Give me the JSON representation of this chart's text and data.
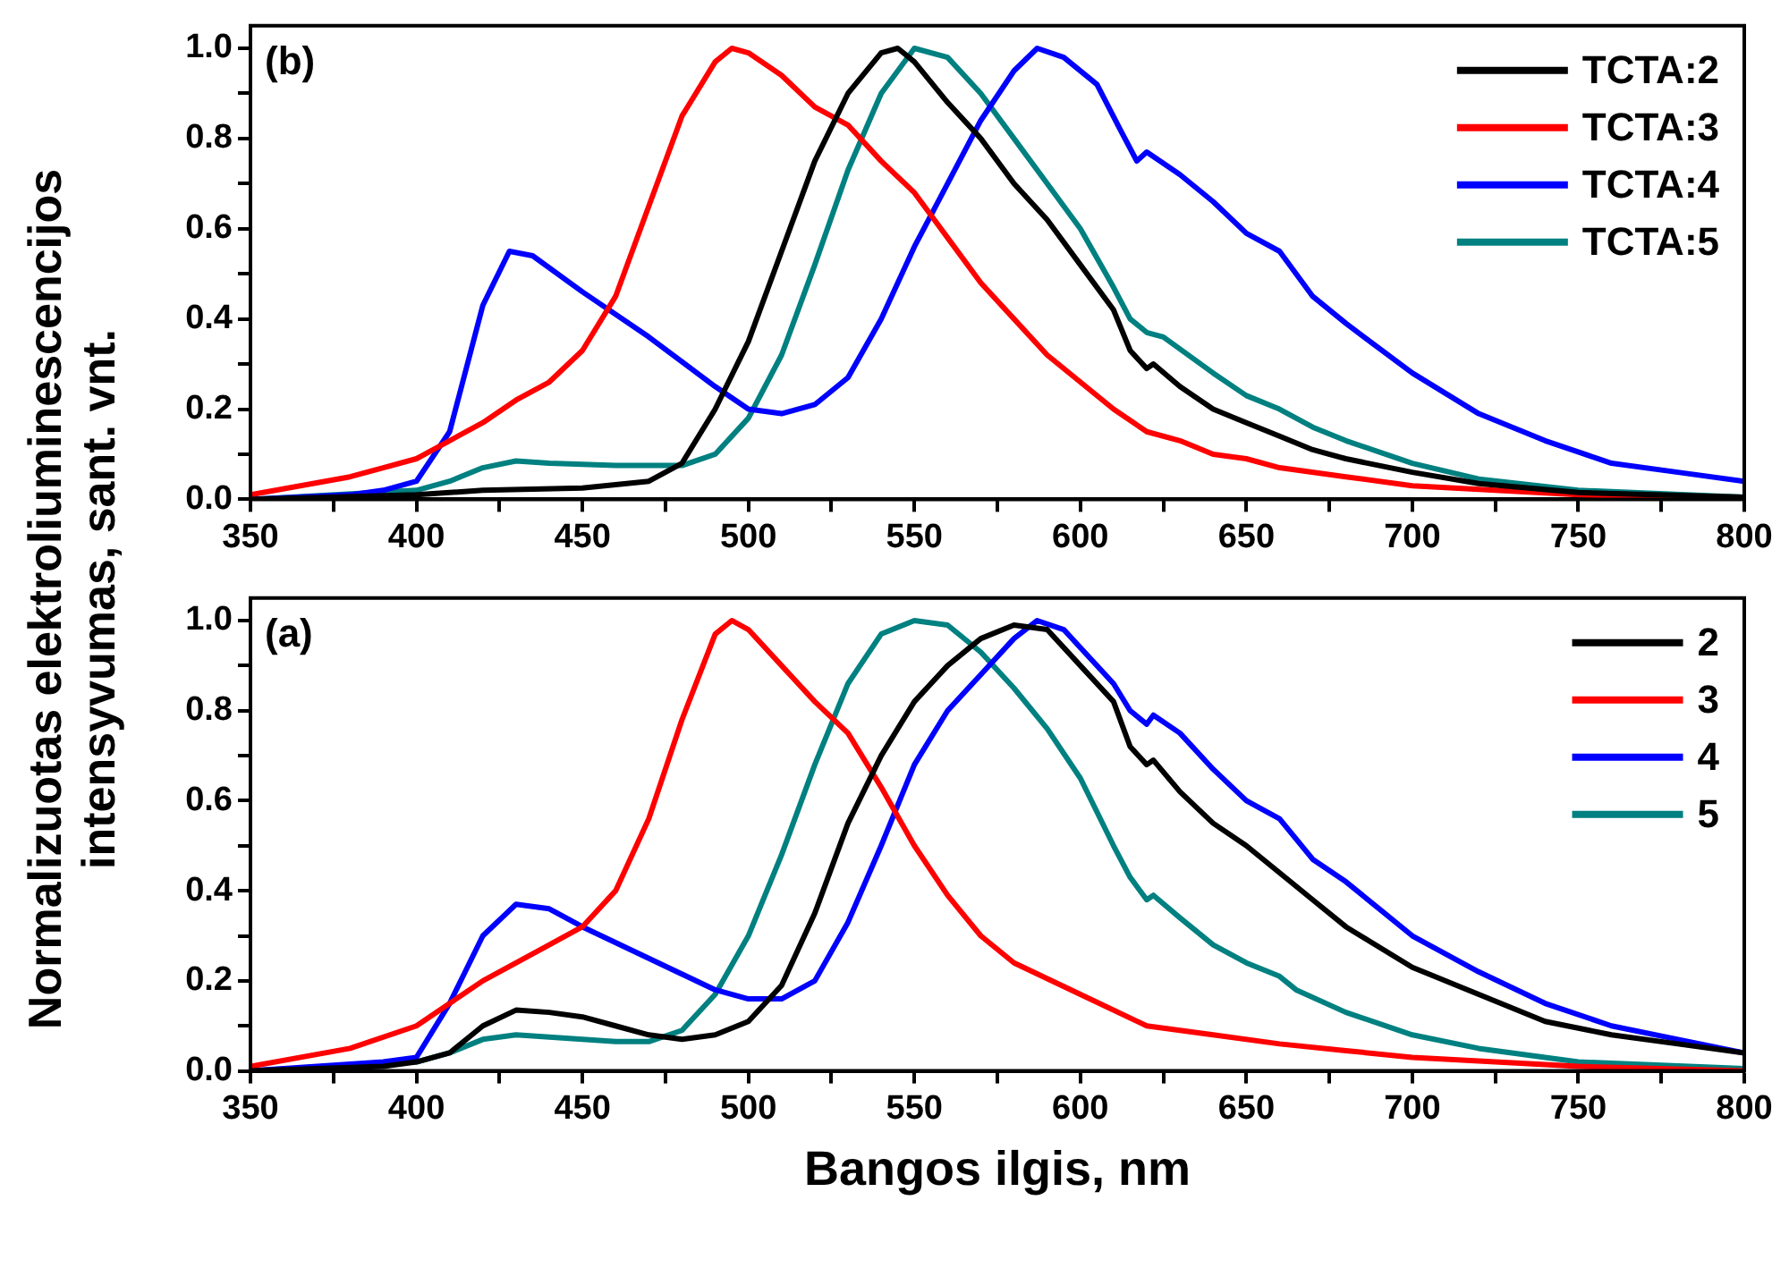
{
  "chart_data": [
    {
      "type": "line",
      "ylabel": "Normalizuotas elektroliuminescencijos intensyvumas, sant. vnt.",
      "annotations": [
        "(b)"
      ],
      "legend": "top right",
      "grid": false,
      "line_style": "solid",
      "marker": "none",
      "xlim": [
        350,
        800
      ],
      "ylim": [
        0,
        1.05
      ],
      "xticks": [
        350,
        {
          "value": 375,
          "label": null
        },
        400,
        {
          "value": 425,
          "label": null
        },
        450,
        {
          "value": 475,
          "label": null
        },
        500,
        {
          "value": 525,
          "label": null
        },
        550,
        {
          "value": 575,
          "label": null
        },
        600,
        {
          "value": 625,
          "label": null
        },
        650,
        {
          "value": 675,
          "label": null
        },
        700,
        {
          "value": 725,
          "label": null
        },
        750,
        {
          "value": 775,
          "label": null
        },
        800
      ],
      "yticks": [
        {
          "value": 0,
          "label": "0.0"
        },
        {
          "value": 0.1,
          "label": null
        },
        {
          "value": 0.2,
          "label": "0.2"
        },
        {
          "value": 0.3,
          "label": null
        },
        {
          "value": 0.4,
          "label": "0.4"
        },
        {
          "value": 0.5,
          "label": null
        },
        {
          "value": 0.6,
          "label": "0.6"
        },
        {
          "value": 0.7,
          "label": null
        },
        {
          "value": 0.8,
          "label": "0.8"
        },
        {
          "value": 0.9,
          "label": null
        },
        {
          "value": 1,
          "label": "1.0"
        }
      ],
      "series": [
        {
          "name": "TCTA:2",
          "color": "#000000",
          "x": [
            350,
            400,
            420,
            450,
            470,
            480,
            490,
            500,
            510,
            520,
            530,
            540,
            545,
            550,
            560,
            570,
            580,
            590,
            600,
            610,
            615,
            620,
            622,
            630,
            640,
            650,
            660,
            670,
            680,
            700,
            720,
            750,
            800
          ],
          "values": [
            0,
            0.01,
            0.02,
            0.025,
            0.04,
            0.08,
            0.2,
            0.35,
            0.55,
            0.75,
            0.9,
            0.99,
            1.0,
            0.97,
            0.88,
            0.8,
            0.7,
            0.62,
            0.52,
            0.42,
            0.33,
            0.29,
            0.3,
            0.25,
            0.2,
            0.17,
            0.14,
            0.11,
            0.09,
            0.06,
            0.035,
            0.015,
            0.005
          ]
        },
        {
          "name": "TCTA:3",
          "color": "#ff0000",
          "x": [
            350,
            380,
            390,
            400,
            420,
            430,
            440,
            450,
            460,
            470,
            480,
            490,
            495,
            500,
            510,
            520,
            530,
            540,
            550,
            560,
            570,
            580,
            590,
            600,
            610,
            620,
            630,
            640,
            650,
            660,
            680,
            700,
            750,
            800
          ],
          "values": [
            0.01,
            0.05,
            0.07,
            0.09,
            0.17,
            0.22,
            0.26,
            0.33,
            0.45,
            0.65,
            0.85,
            0.97,
            1.0,
            0.99,
            0.94,
            0.87,
            0.83,
            0.75,
            0.68,
            0.58,
            0.48,
            0.4,
            0.32,
            0.26,
            0.2,
            0.15,
            0.13,
            0.1,
            0.09,
            0.07,
            0.05,
            0.03,
            0.01,
            0
          ]
        },
        {
          "name": "TCTA:4",
          "color": "#0000ff",
          "x": [
            350,
            380,
            390,
            400,
            410,
            420,
            428,
            435,
            450,
            470,
            490,
            500,
            510,
            520,
            530,
            540,
            550,
            560,
            570,
            580,
            587,
            595,
            605,
            612,
            617,
            620,
            630,
            640,
            650,
            660,
            670,
            680,
            700,
            720,
            740,
            760,
            780,
            800
          ],
          "values": [
            0,
            0.01,
            0.02,
            0.04,
            0.15,
            0.43,
            0.55,
            0.54,
            0.46,
            0.36,
            0.25,
            0.2,
            0.19,
            0.21,
            0.27,
            0.4,
            0.56,
            0.7,
            0.84,
            0.95,
            1.0,
            0.98,
            0.92,
            0.82,
            0.75,
            0.77,
            0.72,
            0.66,
            0.59,
            0.55,
            0.45,
            0.39,
            0.28,
            0.19,
            0.13,
            0.08,
            0.06,
            0.04
          ]
        },
        {
          "name": "TCTA:5",
          "color": "#008080",
          "x": [
            350,
            400,
            410,
            420,
            430,
            440,
            460,
            480,
            490,
            500,
            510,
            520,
            530,
            540,
            550,
            560,
            570,
            580,
            590,
            600,
            610,
            615,
            620,
            625,
            640,
            650,
            660,
            670,
            680,
            700,
            720,
            750,
            800
          ],
          "values": [
            0,
            0.02,
            0.04,
            0.07,
            0.085,
            0.08,
            0.075,
            0.075,
            0.1,
            0.18,
            0.32,
            0.52,
            0.73,
            0.9,
            1.0,
            0.98,
            0.9,
            0.8,
            0.7,
            0.6,
            0.47,
            0.4,
            0.37,
            0.36,
            0.28,
            0.23,
            0.2,
            0.16,
            0.13,
            0.08,
            0.045,
            0.02,
            0.005
          ]
        }
      ]
    },
    {
      "type": "line",
      "xlabel": "Bangos ilgis, nm",
      "annotations": [
        "(a)"
      ],
      "legend": "top right",
      "grid": false,
      "line_style": "solid",
      "marker": "none",
      "xlim": [
        350,
        800
      ],
      "ylim": [
        0,
        1.05
      ],
      "xticks": [
        350,
        {
          "value": 375,
          "label": null
        },
        400,
        {
          "value": 425,
          "label": null
        },
        450,
        {
          "value": 475,
          "label": null
        },
        500,
        {
          "value": 525,
          "label": null
        },
        550,
        {
          "value": 575,
          "label": null
        },
        600,
        {
          "value": 625,
          "label": null
        },
        650,
        {
          "value": 675,
          "label": null
        },
        700,
        {
          "value": 725,
          "label": null
        },
        750,
        {
          "value": 775,
          "label": null
        },
        800
      ],
      "yticks": [
        {
          "value": 0,
          "label": "0.0"
        },
        {
          "value": 0.1,
          "label": null
        },
        {
          "value": 0.2,
          "label": "0.2"
        },
        {
          "value": 0.3,
          "label": null
        },
        {
          "value": 0.4,
          "label": "0.4"
        },
        {
          "value": 0.5,
          "label": null
        },
        {
          "value": 0.6,
          "label": "0.6"
        },
        {
          "value": 0.7,
          "label": null
        },
        {
          "value": 0.8,
          "label": "0.8"
        },
        {
          "value": 0.9,
          "label": null
        },
        {
          "value": 1,
          "label": "1.0"
        }
      ],
      "series": [
        {
          "name": "2",
          "color": "#000000",
          "x": [
            350,
            390,
            400,
            410,
            420,
            430,
            440,
            450,
            460,
            470,
            480,
            490,
            500,
            510,
            520,
            530,
            540,
            550,
            560,
            570,
            580,
            590,
            600,
            610,
            615,
            620,
            622,
            630,
            640,
            650,
            660,
            670,
            680,
            700,
            720,
            740,
            760,
            780,
            800
          ],
          "values": [
            0,
            0.01,
            0.02,
            0.04,
            0.1,
            0.135,
            0.13,
            0.12,
            0.1,
            0.08,
            0.07,
            0.08,
            0.11,
            0.19,
            0.35,
            0.55,
            0.7,
            0.82,
            0.9,
            0.96,
            0.99,
            0.98,
            0.9,
            0.82,
            0.72,
            0.68,
            0.69,
            0.62,
            0.55,
            0.5,
            0.44,
            0.38,
            0.32,
            0.23,
            0.17,
            0.11,
            0.08,
            0.06,
            0.04
          ]
        },
        {
          "name": "3",
          "color": "#ff0000",
          "x": [
            350,
            380,
            400,
            420,
            440,
            450,
            460,
            470,
            480,
            490,
            495,
            500,
            510,
            520,
            530,
            540,
            550,
            560,
            570,
            580,
            600,
            620,
            640,
            660,
            680,
            700,
            750,
            800
          ],
          "values": [
            0.01,
            0.05,
            0.1,
            0.2,
            0.28,
            0.32,
            0.4,
            0.56,
            0.78,
            0.97,
            1.0,
            0.98,
            0.9,
            0.82,
            0.75,
            0.63,
            0.5,
            0.39,
            0.3,
            0.24,
            0.17,
            0.1,
            0.08,
            0.06,
            0.045,
            0.03,
            0.01,
            0
          ]
        },
        {
          "name": "4",
          "color": "#0000ff",
          "x": [
            350,
            390,
            400,
            410,
            420,
            430,
            440,
            450,
            470,
            490,
            500,
            510,
            520,
            530,
            540,
            550,
            560,
            570,
            580,
            587,
            595,
            600,
            610,
            615,
            620,
            622,
            630,
            640,
            650,
            660,
            670,
            680,
            700,
            720,
            740,
            760,
            780,
            800
          ],
          "values": [
            0,
            0.02,
            0.03,
            0.15,
            0.3,
            0.37,
            0.36,
            0.32,
            0.25,
            0.18,
            0.16,
            0.16,
            0.2,
            0.33,
            0.5,
            0.68,
            0.8,
            0.88,
            0.96,
            1.0,
            0.98,
            0.94,
            0.86,
            0.8,
            0.77,
            0.79,
            0.75,
            0.67,
            0.6,
            0.56,
            0.47,
            0.42,
            0.3,
            0.22,
            0.15,
            0.1,
            0.07,
            0.04
          ]
        },
        {
          "name": "5",
          "color": "#008080",
          "x": [
            350,
            400,
            410,
            420,
            430,
            440,
            460,
            470,
            480,
            490,
            500,
            510,
            520,
            530,
            540,
            550,
            560,
            570,
            580,
            590,
            600,
            610,
            615,
            620,
            622,
            630,
            640,
            650,
            660,
            665,
            680,
            700,
            720,
            750,
            800
          ],
          "values": [
            0,
            0.02,
            0.04,
            0.07,
            0.08,
            0.075,
            0.065,
            0.065,
            0.09,
            0.17,
            0.3,
            0.48,
            0.68,
            0.86,
            0.97,
            1.0,
            0.99,
            0.93,
            0.85,
            0.76,
            0.65,
            0.5,
            0.43,
            0.38,
            0.39,
            0.34,
            0.28,
            0.24,
            0.21,
            0.18,
            0.13,
            0.08,
            0.05,
            0.02,
            0.005
          ]
        }
      ]
    }
  ]
}
